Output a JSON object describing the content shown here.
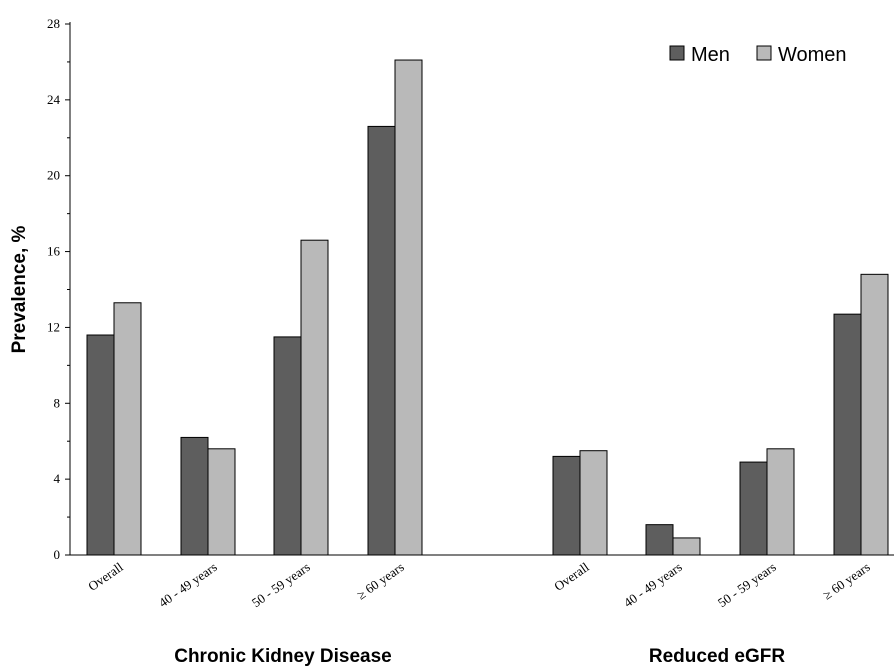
{
  "chart_data": {
    "type": "bar",
    "ylabel": "Prevalence, %",
    "ylim": [
      0,
      28
    ],
    "yticks": [
      0,
      4,
      8,
      12,
      16,
      20,
      24,
      28
    ],
    "legend_position": "top-right",
    "groups": [
      {
        "label": "Chronic Kidney Disease",
        "categories": [
          "Overall",
          "40 - 49 years",
          "50 - 59 years",
          "≥ 60 years"
        ],
        "series": [
          {
            "name": "Men",
            "values": [
              11.6,
              6.2,
              11.5,
              22.6
            ]
          },
          {
            "name": "Women",
            "values": [
              13.3,
              5.6,
              16.6,
              26.1
            ]
          }
        ]
      },
      {
        "label": "Reduced eGFR",
        "categories": [
          "Overall",
          "40 - 49 years",
          "50 - 59 years",
          "≥ 60 years"
        ],
        "series": [
          {
            "name": "Men",
            "values": [
              5.2,
              1.6,
              4.9,
              12.7
            ]
          },
          {
            "name": "Women",
            "values": [
              5.5,
              0.9,
              5.6,
              14.8
            ]
          }
        ]
      }
    ],
    "colors": {
      "Men": "#5e5e5e",
      "Women": "#b9b9b9"
    }
  }
}
